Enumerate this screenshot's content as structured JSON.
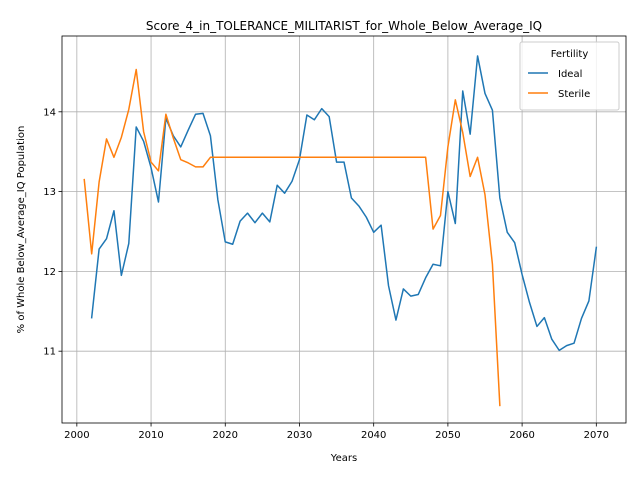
{
  "chart_data": {
    "type": "line",
    "title": "Score_4_in_TOLERANCE_MILITARIST_for_Whole_Below_Average_IQ",
    "xlabel": "Years",
    "ylabel": "% of Whole Below_Average_IQ Population",
    "xlim": [
      1998,
      2074
    ],
    "ylim": [
      10.1,
      14.95
    ],
    "xticks": [
      2000,
      2010,
      2020,
      2030,
      2040,
      2050,
      2060,
      2070
    ],
    "yticks": [
      11,
      12,
      13,
      14
    ],
    "grid": true,
    "legend": {
      "title": "Fertility",
      "placement": "top-right"
    },
    "colors": {
      "Ideal": "#1f77b4",
      "Sterile": "#ff7f0e"
    },
    "series": [
      {
        "name": "Ideal",
        "x": [
          2002,
          2003,
          2004,
          2005,
          2006,
          2007,
          2008,
          2009,
          2010,
          2011,
          2012,
          2013,
          2014,
          2015,
          2016,
          2017,
          2018,
          2019,
          2020,
          2021,
          2022,
          2023,
          2024,
          2025,
          2026,
          2027,
          2028,
          2029,
          2030,
          2031,
          2032,
          2033,
          2034,
          2035,
          2036,
          2037,
          2038,
          2039,
          2040,
          2041,
          2042,
          2043,
          2044,
          2045,
          2046,
          2047,
          2048,
          2049,
          2050,
          2051,
          2052,
          2053,
          2054,
          2055,
          2056,
          2057,
          2058,
          2059,
          2060,
          2061,
          2062,
          2063,
          2064,
          2065,
          2066,
          2067,
          2068,
          2069,
          2070
        ],
        "values": [
          11.42,
          12.28,
          12.41,
          12.76,
          11.95,
          12.35,
          13.81,
          13.63,
          13.3,
          12.87,
          13.92,
          13.7,
          13.56,
          13.77,
          13.97,
          13.98,
          13.7,
          12.9,
          12.37,
          12.34,
          12.63,
          12.73,
          12.61,
          12.73,
          12.62,
          13.08,
          12.98,
          13.13,
          13.4,
          13.96,
          13.9,
          14.04,
          13.94,
          13.37,
          13.37,
          12.92,
          12.82,
          12.68,
          12.49,
          12.58,
          11.82,
          11.39,
          11.78,
          11.69,
          11.71,
          11.92,
          12.09,
          12.07,
          13.0,
          12.6,
          14.26,
          13.72,
          14.7,
          14.23,
          14.02,
          12.92,
          12.49,
          12.36,
          11.96,
          11.61,
          11.31,
          11.42,
          11.15,
          11.01,
          11.07,
          11.1,
          11.41,
          11.63,
          12.3
        ]
      },
      {
        "name": "Sterile",
        "x": [
          2001,
          2002,
          2003,
          2004,
          2005,
          2006,
          2007,
          2008,
          2009,
          2010,
          2011,
          2012,
          2013,
          2014,
          2015,
          2016,
          2017,
          2018,
          2019,
          2020,
          2021,
          2022,
          2023,
          2024,
          2025,
          2026,
          2027,
          2028,
          2029,
          2030,
          2031,
          2032,
          2033,
          2034,
          2035,
          2036,
          2037,
          2038,
          2039,
          2040,
          2041,
          2042,
          2043,
          2044,
          2045,
          2046,
          2047,
          2048,
          2049,
          2050,
          2051,
          2052,
          2053,
          2054,
          2055,
          2056,
          2057
        ],
        "values": [
          13.15,
          12.22,
          13.12,
          13.66,
          13.43,
          13.68,
          14.03,
          14.53,
          13.75,
          13.37,
          13.26,
          13.97,
          13.67,
          13.4,
          13.36,
          13.31,
          13.31,
          13.43,
          13.43,
          13.43,
          13.43,
          13.43,
          13.43,
          13.43,
          13.43,
          13.43,
          13.43,
          13.43,
          13.43,
          13.43,
          13.43,
          13.43,
          13.43,
          13.43,
          13.43,
          13.43,
          13.43,
          13.43,
          13.43,
          13.43,
          13.43,
          13.43,
          13.43,
          13.43,
          13.43,
          13.43,
          13.43,
          12.53,
          12.7,
          13.56,
          14.15,
          13.74,
          13.19,
          13.43,
          12.96,
          12.09,
          10.32
        ]
      }
    ]
  }
}
